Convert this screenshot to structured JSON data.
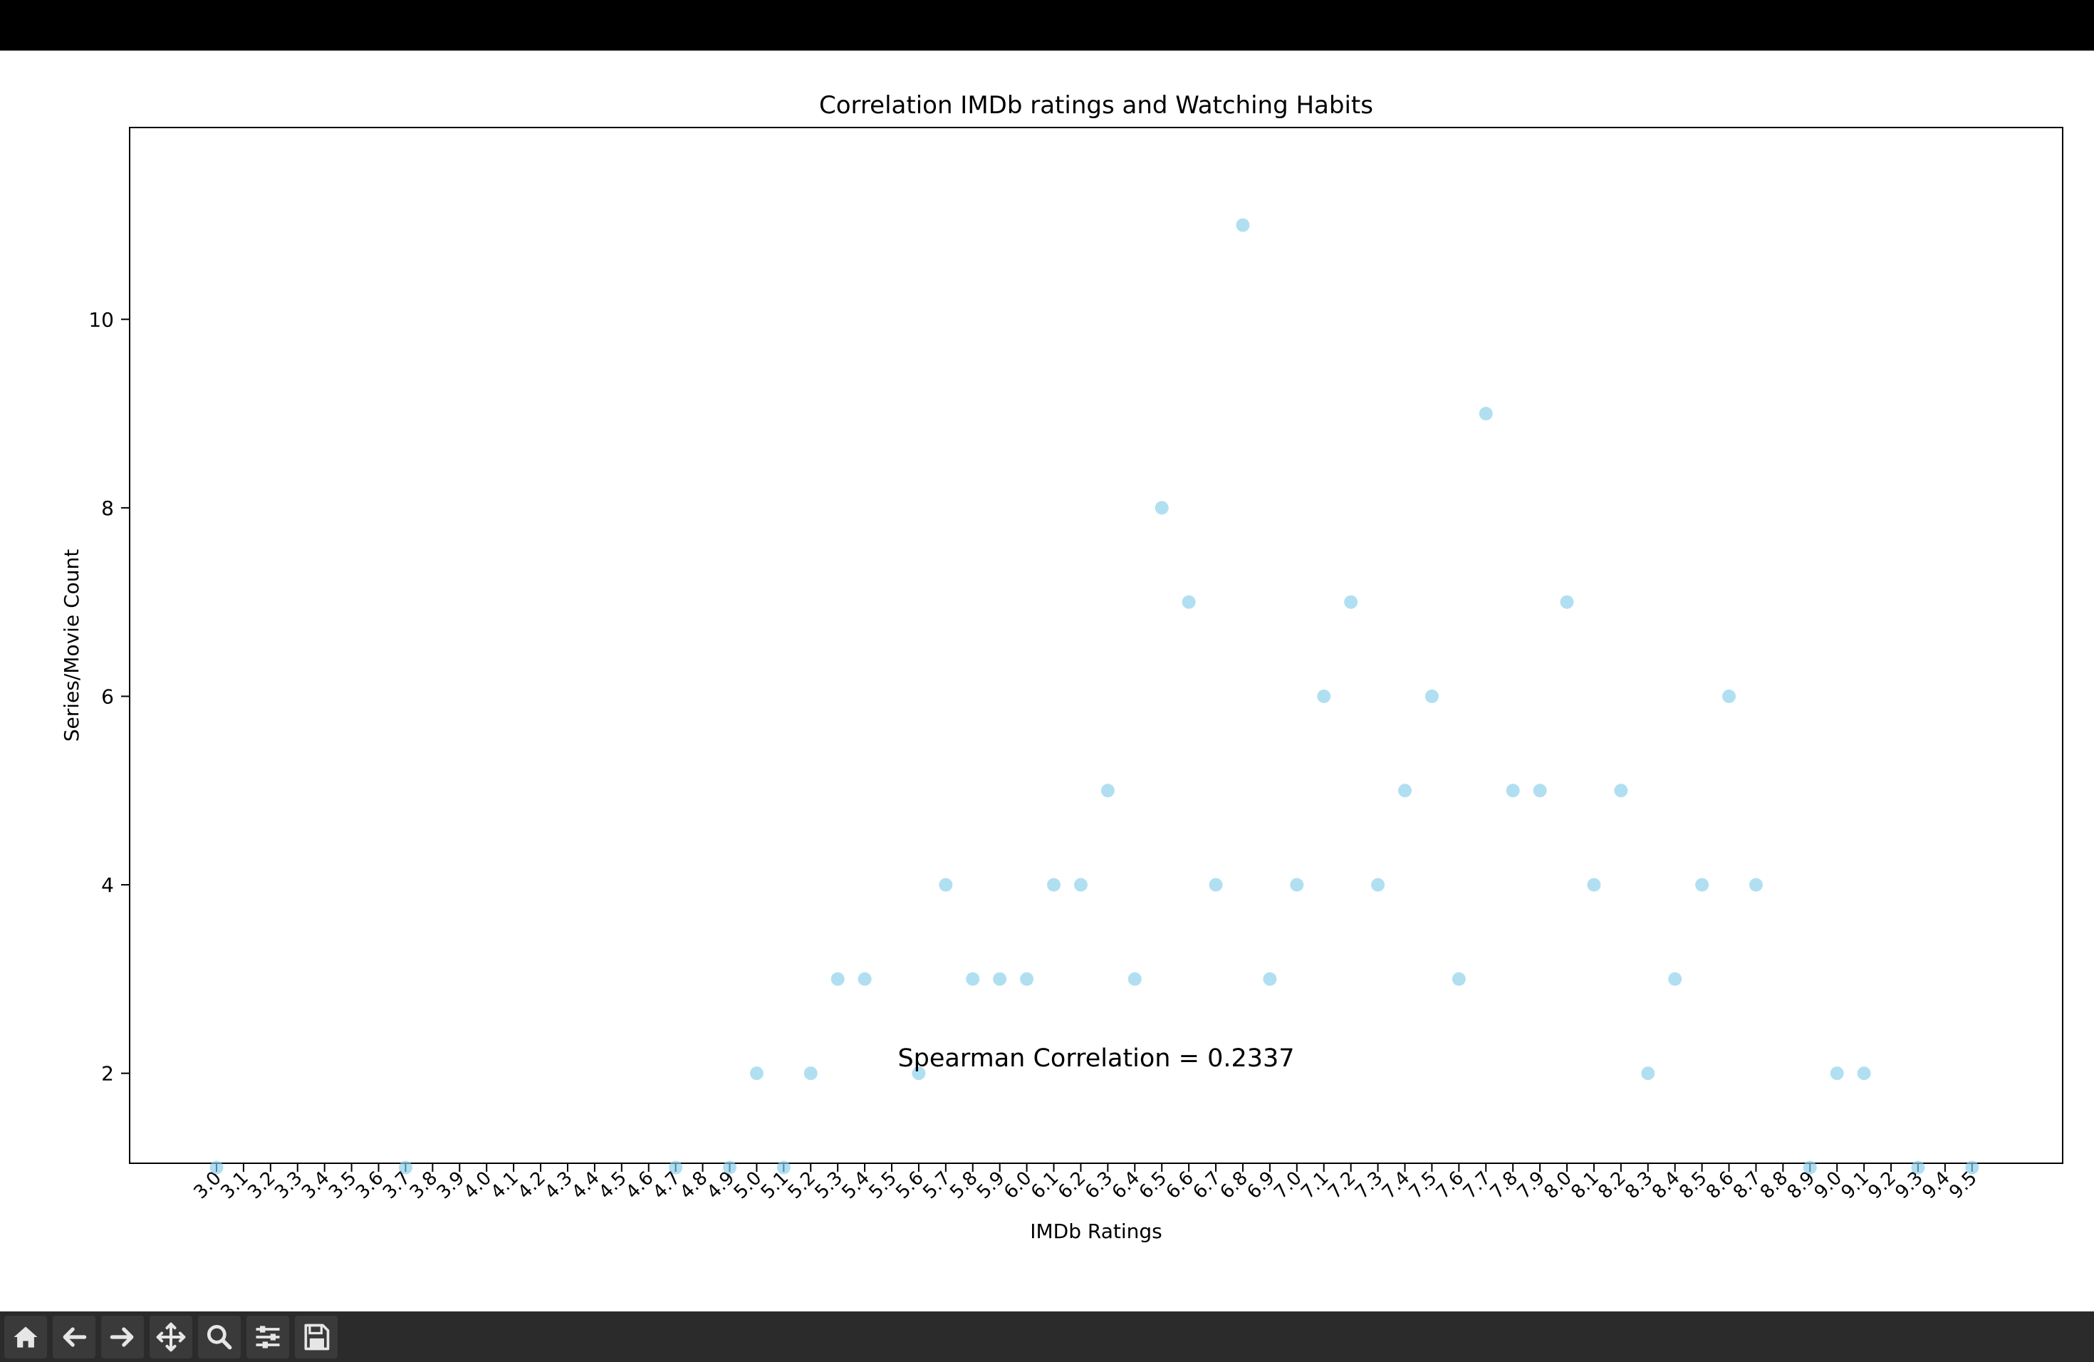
{
  "window": {
    "background": "#000000"
  },
  "chart_data": {
    "type": "scatter",
    "title": "Correlation IMDb ratings and Watching Habits",
    "xlabel": "IMDb Ratings",
    "ylabel": "Series/Movie Count",
    "annotation": "Spearman Correlation = 0.2337",
    "x_categories": [
      "3.0",
      "3.1",
      "3.2",
      "3.3",
      "3.4",
      "3.5",
      "3.6",
      "3.7",
      "3.8",
      "3.9",
      "4.0",
      "4.1",
      "4.2",
      "4.3",
      "4.4",
      "4.5",
      "4.6",
      "4.7",
      "4.8",
      "4.9",
      "5.0",
      "5.1",
      "5.2",
      "5.3",
      "5.4",
      "5.5",
      "5.6",
      "5.7",
      "5.8",
      "5.9",
      "6.0",
      "6.1",
      "6.2",
      "6.3",
      "6.4",
      "6.5",
      "6.6",
      "6.7",
      "6.8",
      "6.9",
      "7.0",
      "7.1",
      "7.2",
      "7.3",
      "7.4",
      "7.5",
      "7.6",
      "7.7",
      "7.8",
      "7.9",
      "8.0",
      "8.1",
      "8.2",
      "8.3",
      "8.4",
      "8.5",
      "8.6",
      "8.7",
      "8.8",
      "8.9",
      "9.0",
      "9.1",
      "9.2",
      "9.3",
      "9.4",
      "9.5"
    ],
    "y_ticks": [
      2,
      4,
      6,
      8,
      10
    ],
    "ylim": [
      0.6,
      11.5
    ],
    "marker_color": "#87ceeb",
    "points": [
      {
        "x": "3.0",
        "y": 1
      },
      {
        "x": "3.7",
        "y": 1
      },
      {
        "x": "4.7",
        "y": 1
      },
      {
        "x": "4.9",
        "y": 1
      },
      {
        "x": "5.0",
        "y": 2
      },
      {
        "x": "5.1",
        "y": 1
      },
      {
        "x": "5.2",
        "y": 2
      },
      {
        "x": "5.3",
        "y": 3
      },
      {
        "x": "5.4",
        "y": 3
      },
      {
        "x": "5.6",
        "y": 2
      },
      {
        "x": "5.7",
        "y": 4
      },
      {
        "x": "5.8",
        "y": 3
      },
      {
        "x": "5.9",
        "y": 3
      },
      {
        "x": "6.0",
        "y": 3
      },
      {
        "x": "6.1",
        "y": 4
      },
      {
        "x": "6.2",
        "y": 4
      },
      {
        "x": "6.3",
        "y": 5
      },
      {
        "x": "6.4",
        "y": 3
      },
      {
        "x": "6.5",
        "y": 8
      },
      {
        "x": "6.6",
        "y": 7
      },
      {
        "x": "6.7",
        "y": 4
      },
      {
        "x": "6.8",
        "y": 11
      },
      {
        "x": "6.9",
        "y": 3
      },
      {
        "x": "7.0",
        "y": 4
      },
      {
        "x": "7.1",
        "y": 6
      },
      {
        "x": "7.2",
        "y": 7
      },
      {
        "x": "7.3",
        "y": 4
      },
      {
        "x": "7.4",
        "y": 5
      },
      {
        "x": "7.5",
        "y": 6
      },
      {
        "x": "7.6",
        "y": 3
      },
      {
        "x": "7.7",
        "y": 9
      },
      {
        "x": "7.8",
        "y": 5
      },
      {
        "x": "7.9",
        "y": 5
      },
      {
        "x": "8.0",
        "y": 7
      },
      {
        "x": "8.1",
        "y": 4
      },
      {
        "x": "8.2",
        "y": 5
      },
      {
        "x": "8.3",
        "y": 2
      },
      {
        "x": "8.4",
        "y": 3
      },
      {
        "x": "8.5",
        "y": 4
      },
      {
        "x": "8.6",
        "y": 6
      },
      {
        "x": "8.7",
        "y": 4
      },
      {
        "x": "8.9",
        "y": 1
      },
      {
        "x": "9.0",
        "y": 2
      },
      {
        "x": "9.1",
        "y": 2
      },
      {
        "x": "9.3",
        "y": 1
      },
      {
        "x": "9.5",
        "y": 1
      }
    ]
  },
  "toolbar": {
    "buttons": [
      {
        "name": "home-icon"
      },
      {
        "name": "back-arrow-icon"
      },
      {
        "name": "forward-arrow-icon"
      },
      {
        "name": "pan-move-icon"
      },
      {
        "name": "zoom-magnifier-icon"
      },
      {
        "name": "configure-subplots-icon"
      },
      {
        "name": "save-floppy-icon"
      }
    ]
  }
}
